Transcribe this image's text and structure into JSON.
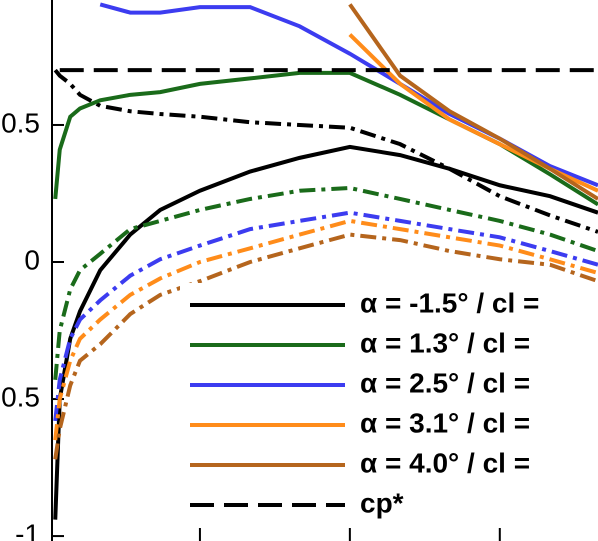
{
  "chart_data": {
    "type": "line",
    "x": [
      0.007,
      0.013,
      0.027,
      0.04,
      0.067,
      0.107,
      0.147,
      0.2,
      0.267,
      0.333,
      0.4,
      0.467,
      0.533,
      0.6,
      0.667,
      0.731
    ],
    "xlim": [
      0,
      0.731
    ],
    "xticks": [
      0.2,
      0.4,
      0.6
    ],
    "ylim": [
      -1.018,
      0.956
    ],
    "yticks": [
      0.5,
      0,
      -0.5,
      -1
    ],
    "series": [
      {
        "name": "α = -1.5° / cl =",
        "color": "#000000",
        "style": "solid",
        "values": [
          -0.94,
          -0.5,
          -0.28,
          -0.18,
          -0.03,
          0.1,
          0.19,
          0.26,
          0.33,
          0.38,
          0.42,
          0.39,
          0.34,
          0.28,
          0.24,
          0.18
        ]
      },
      {
        "color": "#000000",
        "style": "dashdot",
        "values": [
          0.7,
          0.68,
          0.65,
          0.61,
          0.57,
          0.55,
          0.54,
          0.53,
          0.51,
          0.5,
          0.49,
          0.43,
          0.34,
          0.24,
          0.17,
          0.11
        ]
      },
      {
        "name": "α = 1.3° / cl =",
        "color": "#1a6b1a",
        "style": "solid",
        "values": [
          0.23,
          0.41,
          0.53,
          0.56,
          0.59,
          0.61,
          0.62,
          0.65,
          0.67,
          0.69,
          0.69,
          0.61,
          0.52,
          0.43,
          0.32,
          0.21
        ]
      },
      {
        "color": "#1a6b1a",
        "style": "dashdot",
        "values": [
          -0.43,
          -0.25,
          -0.1,
          -0.03,
          0.03,
          0.12,
          0.15,
          0.19,
          0.23,
          0.26,
          0.27,
          0.23,
          0.19,
          0.15,
          0.1,
          0.04
        ]
      },
      {
        "name": "α = 2.5° / cl =",
        "color": "#3c3cf0",
        "style": "solid",
        "values": [
          null,
          null,
          null,
          null,
          0.94,
          0.91,
          0.91,
          0.93,
          0.93,
          0.86,
          0.76,
          0.65,
          0.54,
          0.45,
          0.35,
          0.28
        ]
      },
      {
        "color": "#3c3cf0",
        "style": "dashdot",
        "values": [
          -0.58,
          -0.43,
          -0.28,
          -0.21,
          -0.14,
          -0.05,
          0.01,
          0.06,
          0.12,
          0.15,
          0.18,
          0.15,
          0.12,
          0.09,
          0.04,
          -0.01
        ]
      },
      {
        "name": "α = 3.1° / cl =",
        "color": "#ff8c1a",
        "style": "solid",
        "values": [
          null,
          null,
          null,
          null,
          null,
          null,
          null,
          null,
          null,
          null,
          0.83,
          0.65,
          0.52,
          0.43,
          0.34,
          0.26
        ]
      },
      {
        "color": "#ff8c1a",
        "style": "dashdot",
        "values": [
          -0.65,
          -0.5,
          -0.36,
          -0.28,
          -0.21,
          -0.12,
          -0.06,
          0,
          0.05,
          0.1,
          0.15,
          0.12,
          0.09,
          0.06,
          0.01,
          -0.04
        ]
      },
      {
        "name": "α = 4.0° / cl =",
        "color": "#b5651d",
        "style": "solid",
        "values": [
          null,
          null,
          null,
          null,
          null,
          null,
          null,
          null,
          null,
          null,
          0.94,
          0.68,
          0.55,
          0.45,
          0.34,
          0.23
        ]
      },
      {
        "color": "#b5651d",
        "style": "dashdot",
        "values": [
          -0.72,
          -0.61,
          -0.45,
          -0.36,
          -0.3,
          -0.19,
          -0.12,
          -0.07,
          0,
          0.05,
          0.1,
          0.08,
          0.04,
          0.01,
          -0.01,
          -0.07
        ]
      },
      {
        "name": "cp*",
        "color": "#000000",
        "style": "dash",
        "x": [
          0.013,
          0.731
        ],
        "values": [
          0.7,
          0.7
        ]
      }
    ]
  }
}
